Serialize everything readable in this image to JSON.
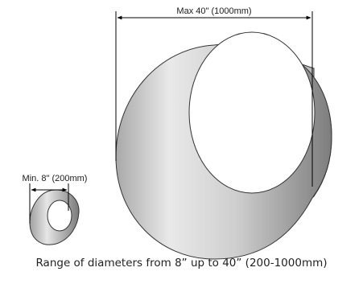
{
  "large_tube": {
    "dimension_label": "Max 40\" (1000mm)"
  },
  "small_tube": {
    "dimension_label": "Min. 8\" (200mm)"
  },
  "caption": "Range of diameters from 8” up to 40” (200-1000mm)",
  "colors": {
    "tube_light": "#f2f2f2",
    "tube_mid": "#bdbdbd",
    "tube_dark": "#7a7a7a",
    "outline": "#333333",
    "dimension_line": "#000000"
  }
}
